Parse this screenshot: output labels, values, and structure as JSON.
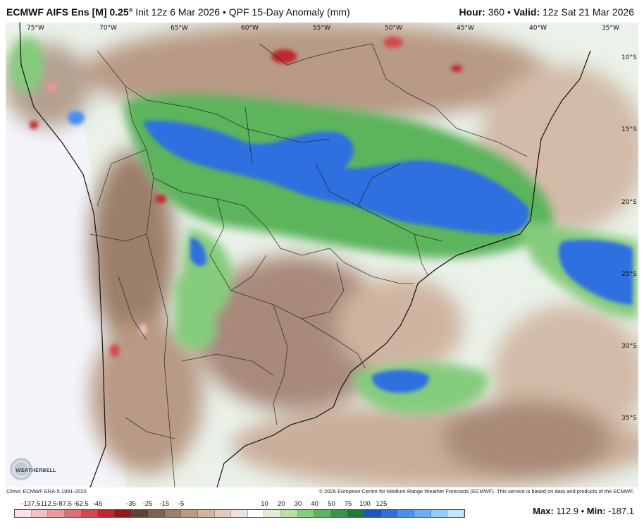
{
  "header": {
    "model": "ECMWF AIFS Ens [M] 0.25",
    "init": "Init 12z 6 Mar 2026",
    "product": "QPF 15-Day Anomaly (mm)",
    "hour_label": "Hour:",
    "hour_value": "360",
    "valid_label": "Valid:",
    "valid_value": "12z Sat 21 Mar 2026"
  },
  "map": {
    "longitude_labels": [
      "75°W",
      "70°W",
      "65°W",
      "60°W",
      "55°W",
      "50°W",
      "45°W",
      "40°W",
      "35°W"
    ],
    "latitude_labels": [
      "10°S",
      "15°S",
      "20°S",
      "25°S",
      "30°S",
      "35°S"
    ],
    "logo_text": "WEATHERBELL"
  },
  "footer": {
    "climo": "Climo: ECMWF ERA-5 1991-2020",
    "copyright": "© 2026 European Centre for Medium-Range Weather Forecasts (ECMWF). This service is based on data and products of the ECMWF."
  },
  "legend": {
    "labels": [
      "-137.5",
      "-112.5",
      "-87.5",
      "-62.5",
      "-45",
      "-35",
      "-25",
      "-15",
      "-5",
      "10",
      "20",
      "30",
      "40",
      "50",
      "75",
      "100",
      "125"
    ],
    "colors": [
      "#fbe3e5",
      "#f3c0c4",
      "#eb979d",
      "#e06d74",
      "#d4484f",
      "#c0262b",
      "#8e1c1f",
      "#5e4437",
      "#7f6352",
      "#9c7f6b",
      "#b89a85",
      "#cfb5a1",
      "#e2cdbd",
      "#efe3d9",
      "#ffffff",
      "#dff0d8",
      "#b5e0a8",
      "#86cc7d",
      "#5cb45c",
      "#37954a",
      "#1f7a3c",
      "#1e56c8",
      "#2f6fe0",
      "#4b8ff0",
      "#6eadf5",
      "#95cdf8",
      "#c3e6fb"
    ]
  },
  "stats": {
    "max_label": "Max:",
    "max_value": "112.9",
    "min_label": "Min:",
    "min_value": "-187.1"
  }
}
